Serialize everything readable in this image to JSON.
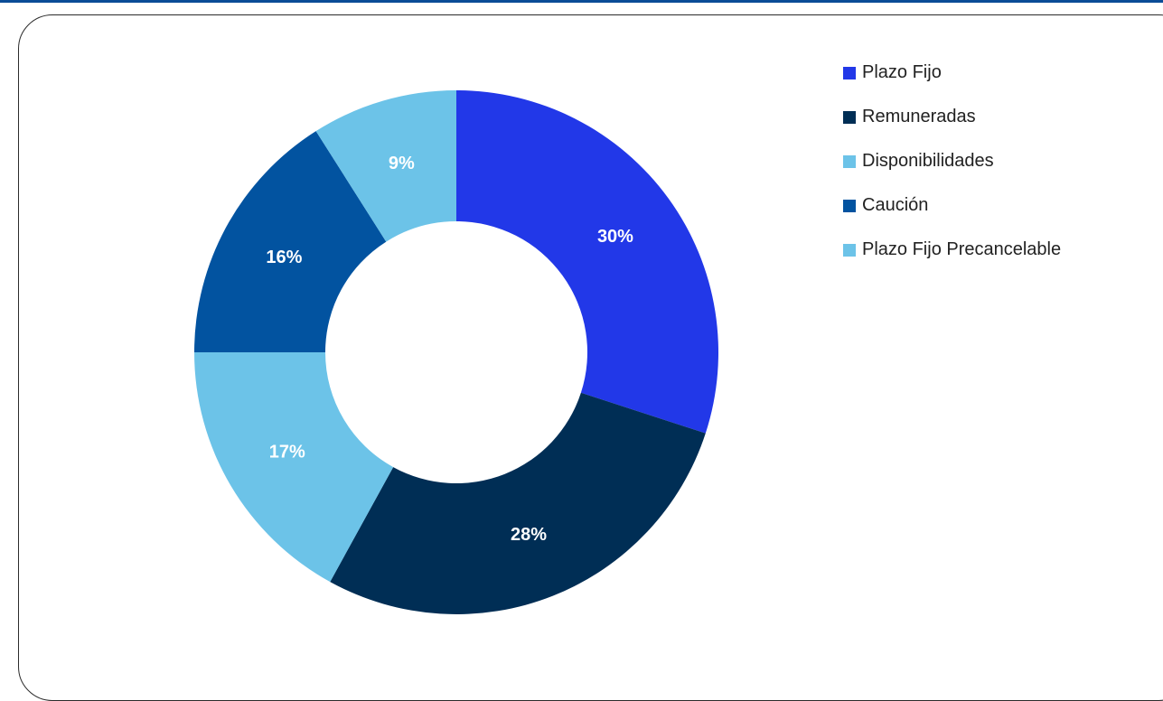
{
  "chart_data": {
    "type": "pie",
    "donut": true,
    "series": [
      {
        "name": "Plazo Fijo",
        "value": 30,
        "label": "30%",
        "color": "#2238e8"
      },
      {
        "name": "Remuneradas",
        "value": 28,
        "label": "28%",
        "color": "#002e55"
      },
      {
        "name": "Disponibilidades",
        "value": 17,
        "label": "17%",
        "color": "#6cc3e8"
      },
      {
        "name": "Caución",
        "value": 16,
        "label": "16%",
        "color": "#0253a0"
      },
      {
        "name": "Plazo Fijo Precancelable",
        "value": 9,
        "label": "9%",
        "color": "#6cc3e8"
      }
    ],
    "legend_position": "top-right",
    "title": ""
  },
  "colors": {
    "frame_border": "#2b2b2b",
    "top_rule": "#0b4c97"
  }
}
